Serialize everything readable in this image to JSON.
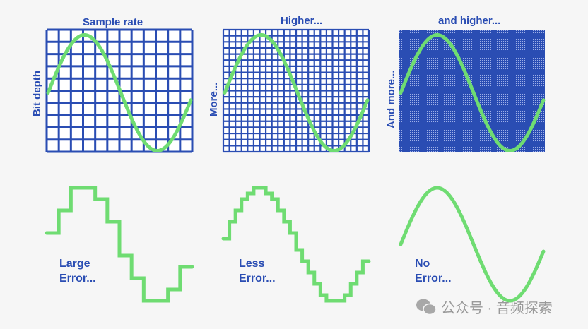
{
  "colors": {
    "grid": "#2a4db3",
    "wave": "#6fdc72",
    "background": "#f6f6f6"
  },
  "panels": [
    {
      "title": "Sample rate",
      "axis": "Bit depth",
      "cols": 12,
      "rows": 10,
      "steps": 12,
      "levels": 10,
      "error": [
        "Large",
        "Error..."
      ]
    },
    {
      "title": "Higher...",
      "axis": "More...",
      "cols": 24,
      "rows": 20,
      "steps": 24,
      "levels": 20,
      "error": [
        "Less",
        "Error..."
      ]
    },
    {
      "title": "and higher...",
      "axis": "And more...",
      "cols": 80,
      "rows": 65,
      "steps": 0,
      "levels": 0,
      "error": [
        "No",
        "Error..."
      ]
    }
  ],
  "watermark": {
    "icon": "wechat-icon",
    "text": "公众号 · 音频探索"
  }
}
